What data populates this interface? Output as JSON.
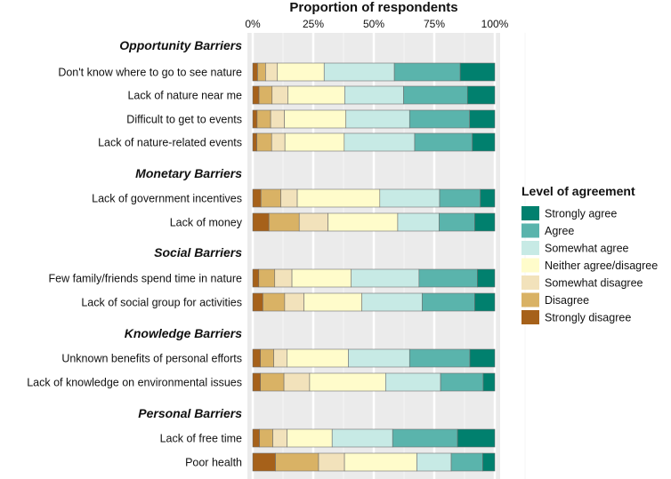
{
  "chart_data": {
    "type": "bar",
    "orientation": "horizontal",
    "stacked": true,
    "title": "Proportion of respondents",
    "xlim": [
      0,
      100
    ],
    "x_ticks": [
      "0%",
      "25%",
      "50%",
      "75%",
      "100%"
    ],
    "grid": true,
    "legend": {
      "title": "Level of agreement",
      "placement": "right",
      "entries": [
        "Strongly agree",
        "Agree",
        "Somewhat agree",
        "Neither agree/disagree",
        "Somewhat disagree",
        "Disagree",
        "Strongly disagree"
      ]
    },
    "levels": [
      "Strongly disagree",
      "Disagree",
      "Somewhat disagree",
      "Neither agree/disagree",
      "Somewhat agree",
      "Agree",
      "Strongly agree"
    ],
    "colors": {
      "Strongly disagree": "#a6611a",
      "Disagree": "#d9b265",
      "Somewhat disagree": "#f2e2bb",
      "Neither agree/disagree": "#fffccb",
      "Somewhat agree": "#c7eae5",
      "Agree": "#5ab4ac",
      "Strongly agree": "#01806e"
    },
    "groups": [
      {
        "name": "Opportunity Barriers",
        "items": [
          {
            "label": "Don't know where to go to see nature",
            "values": [
              2.0,
              3.3,
              4.9,
              19.3,
              29.0,
              27.2,
              14.3
            ]
          },
          {
            "label": "Lack of nature near me",
            "values": [
              2.6,
              5.4,
              6.5,
              23.5,
              24.3,
              26.4,
              11.3
            ]
          },
          {
            "label": "Difficult to get to events",
            "values": [
              1.8,
              5.6,
              5.7,
              25.4,
              26.3,
              24.8,
              10.4
            ]
          },
          {
            "label": "Lack of nature-related events",
            "values": [
              1.7,
              6.1,
              5.5,
              24.5,
              29.1,
              23.8,
              9.3
            ]
          }
        ]
      },
      {
        "name": "Monetary Barriers",
        "items": [
          {
            "label": "Lack of government incentives",
            "values": [
              3.4,
              8.2,
              6.8,
              34.1,
              24.7,
              16.8,
              6.0
            ]
          },
          {
            "label": "Lack of money",
            "values": [
              6.7,
              12.5,
              11.9,
              28.8,
              17.1,
              14.7,
              8.3
            ]
          }
        ]
      },
      {
        "name": "Social Barriers",
        "items": [
          {
            "label": "Few family/friends spend time in nature",
            "values": [
              2.5,
              6.6,
              7.1,
              24.5,
              28.0,
              24.1,
              7.2
            ]
          },
          {
            "label": "Lack of social group for activities",
            "values": [
              4.2,
              9.0,
              8.0,
              23.9,
              24.9,
              21.7,
              8.3
            ]
          }
        ]
      },
      {
        "name": "Knowledge Barriers",
        "items": [
          {
            "label": "Unknown benefits of personal efforts",
            "values": [
              3.2,
              5.5,
              5.4,
              25.4,
              25.3,
              24.9,
              10.3
            ]
          },
          {
            "label": "Lack of knowledge on environmental issues",
            "values": [
              3.2,
              9.7,
              10.6,
              31.4,
              22.7,
              17.6,
              4.8
            ]
          }
        ]
      },
      {
        "name": "Personal Barriers",
        "items": [
          {
            "label": "Lack of free time",
            "values": [
              2.8,
              5.5,
              5.9,
              18.6,
              25.0,
              26.8,
              15.4
            ]
          },
          {
            "label": "Poor health",
            "values": [
              9.4,
              17.8,
              10.7,
              29.9,
              14.2,
              13.0,
              5.0
            ]
          }
        ]
      }
    ]
  }
}
